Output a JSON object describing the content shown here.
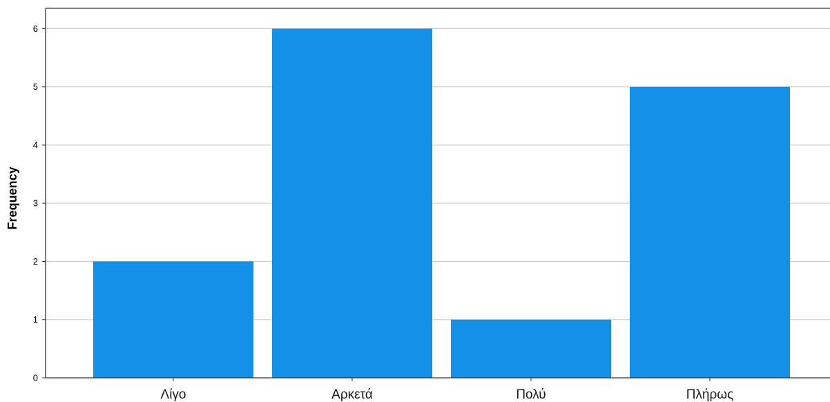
{
  "chart_data": {
    "type": "bar",
    "categories": [
      "Λίγο",
      "Αρκετά",
      "Πολύ",
      "Πλήρως"
    ],
    "values": [
      2,
      6,
      1,
      5
    ],
    "title": "",
    "xlabel": "",
    "ylabel": "Frequency",
    "ylim": [
      0,
      6.35
    ],
    "yticks": [
      "0",
      "1",
      "2",
      "3",
      "4",
      "5",
      "6"
    ],
    "grid": "horizontal",
    "bar_color": "#1490e6",
    "grid_color": "#c8c8c8",
    "axis_color": "#333333"
  }
}
